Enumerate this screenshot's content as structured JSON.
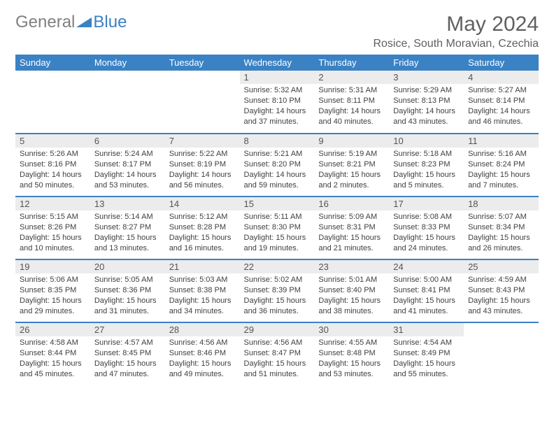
{
  "logo": {
    "gray": "General",
    "blue": "Blue"
  },
  "title": "May 2024",
  "location": "Rosice, South Moravian, Czechia",
  "colors": {
    "header_bg": "#3b82c4",
    "daynum_bg": "#ececec",
    "row_divider": "#3b82c4",
    "text": "#404040",
    "title_text": "#606060"
  },
  "day_labels": [
    "Sunday",
    "Monday",
    "Tuesday",
    "Wednesday",
    "Thursday",
    "Friday",
    "Saturday"
  ],
  "weeks": [
    [
      null,
      null,
      null,
      {
        "n": "1",
        "sr": "5:32 AM",
        "ss": "8:10 PM",
        "dl": "14 hours and 37 minutes."
      },
      {
        "n": "2",
        "sr": "5:31 AM",
        "ss": "8:11 PM",
        "dl": "14 hours and 40 minutes."
      },
      {
        "n": "3",
        "sr": "5:29 AM",
        "ss": "8:13 PM",
        "dl": "14 hours and 43 minutes."
      },
      {
        "n": "4",
        "sr": "5:27 AM",
        "ss": "8:14 PM",
        "dl": "14 hours and 46 minutes."
      }
    ],
    [
      {
        "n": "5",
        "sr": "5:26 AM",
        "ss": "8:16 PM",
        "dl": "14 hours and 50 minutes."
      },
      {
        "n": "6",
        "sr": "5:24 AM",
        "ss": "8:17 PM",
        "dl": "14 hours and 53 minutes."
      },
      {
        "n": "7",
        "sr": "5:22 AM",
        "ss": "8:19 PM",
        "dl": "14 hours and 56 minutes."
      },
      {
        "n": "8",
        "sr": "5:21 AM",
        "ss": "8:20 PM",
        "dl": "14 hours and 59 minutes."
      },
      {
        "n": "9",
        "sr": "5:19 AM",
        "ss": "8:21 PM",
        "dl": "15 hours and 2 minutes."
      },
      {
        "n": "10",
        "sr": "5:18 AM",
        "ss": "8:23 PM",
        "dl": "15 hours and 5 minutes."
      },
      {
        "n": "11",
        "sr": "5:16 AM",
        "ss": "8:24 PM",
        "dl": "15 hours and 7 minutes."
      }
    ],
    [
      {
        "n": "12",
        "sr": "5:15 AM",
        "ss": "8:26 PM",
        "dl": "15 hours and 10 minutes."
      },
      {
        "n": "13",
        "sr": "5:14 AM",
        "ss": "8:27 PM",
        "dl": "15 hours and 13 minutes."
      },
      {
        "n": "14",
        "sr": "5:12 AM",
        "ss": "8:28 PM",
        "dl": "15 hours and 16 minutes."
      },
      {
        "n": "15",
        "sr": "5:11 AM",
        "ss": "8:30 PM",
        "dl": "15 hours and 19 minutes."
      },
      {
        "n": "16",
        "sr": "5:09 AM",
        "ss": "8:31 PM",
        "dl": "15 hours and 21 minutes."
      },
      {
        "n": "17",
        "sr": "5:08 AM",
        "ss": "8:33 PM",
        "dl": "15 hours and 24 minutes."
      },
      {
        "n": "18",
        "sr": "5:07 AM",
        "ss": "8:34 PM",
        "dl": "15 hours and 26 minutes."
      }
    ],
    [
      {
        "n": "19",
        "sr": "5:06 AM",
        "ss": "8:35 PM",
        "dl": "15 hours and 29 minutes."
      },
      {
        "n": "20",
        "sr": "5:05 AM",
        "ss": "8:36 PM",
        "dl": "15 hours and 31 minutes."
      },
      {
        "n": "21",
        "sr": "5:03 AM",
        "ss": "8:38 PM",
        "dl": "15 hours and 34 minutes."
      },
      {
        "n": "22",
        "sr": "5:02 AM",
        "ss": "8:39 PM",
        "dl": "15 hours and 36 minutes."
      },
      {
        "n": "23",
        "sr": "5:01 AM",
        "ss": "8:40 PM",
        "dl": "15 hours and 38 minutes."
      },
      {
        "n": "24",
        "sr": "5:00 AM",
        "ss": "8:41 PM",
        "dl": "15 hours and 41 minutes."
      },
      {
        "n": "25",
        "sr": "4:59 AM",
        "ss": "8:43 PM",
        "dl": "15 hours and 43 minutes."
      }
    ],
    [
      {
        "n": "26",
        "sr": "4:58 AM",
        "ss": "8:44 PM",
        "dl": "15 hours and 45 minutes."
      },
      {
        "n": "27",
        "sr": "4:57 AM",
        "ss": "8:45 PM",
        "dl": "15 hours and 47 minutes."
      },
      {
        "n": "28",
        "sr": "4:56 AM",
        "ss": "8:46 PM",
        "dl": "15 hours and 49 minutes."
      },
      {
        "n": "29",
        "sr": "4:56 AM",
        "ss": "8:47 PM",
        "dl": "15 hours and 51 minutes."
      },
      {
        "n": "30",
        "sr": "4:55 AM",
        "ss": "8:48 PM",
        "dl": "15 hours and 53 minutes."
      },
      {
        "n": "31",
        "sr": "4:54 AM",
        "ss": "8:49 PM",
        "dl": "15 hours and 55 minutes."
      },
      null
    ]
  ],
  "labels": {
    "sunrise": "Sunrise:",
    "sunset": "Sunset:",
    "daylight": "Daylight:"
  }
}
